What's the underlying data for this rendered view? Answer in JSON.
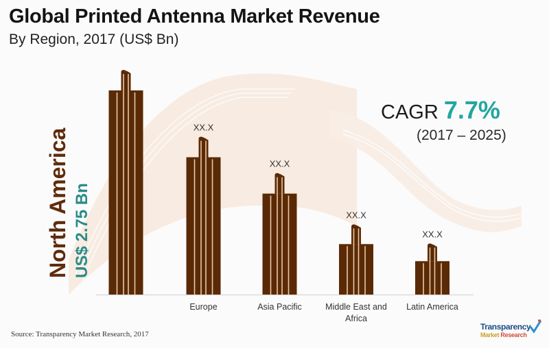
{
  "header": {
    "title": "Global Printed Antenna Market Revenue",
    "subtitle": "By Region, 2017 (US$ Bn)"
  },
  "highlight": {
    "region": "North America",
    "value_label": "US$ 2.75 Bn"
  },
  "cagr": {
    "label": "CAGR",
    "value": "7.7%",
    "period": "(2017 – 2025)"
  },
  "footer": {
    "source": "Source: Transparency  Market Research, 2017",
    "logo_line1": "Transparency",
    "logo_line2a": "Market",
    "logo_line2b": "Research"
  },
  "colors": {
    "bar": "#5a2a06",
    "bar_stripe": "#e8c9a4",
    "accent": "#23a6a0",
    "region_text": "#5e2c0c",
    "axis": "#dcdcdc"
  },
  "chart_data": {
    "type": "bar",
    "title": "Global Printed Antenna Market Revenue",
    "subtitle": "By Region, 2017 (US$ Bn)",
    "xlabel": "",
    "ylabel": "US$ Bn",
    "ylim": [
      0,
      2.75
    ],
    "grid": false,
    "categories": [
      "North America",
      "Europe",
      "Asia Pacific",
      "Middle East and Africa",
      "Latin America"
    ],
    "tick_labels": [
      "",
      "Europe",
      "Asia Pacific",
      "Middle East and\nAfrica",
      "Latin America"
    ],
    "values": [
      2.75,
      1.85,
      1.36,
      0.68,
      0.45
    ],
    "data_labels": [
      "",
      "XX.X",
      "XX.X",
      "XX.X",
      "XX.X"
    ],
    "annotations": [
      "CAGR 7.7% (2017 – 2025)"
    ]
  }
}
